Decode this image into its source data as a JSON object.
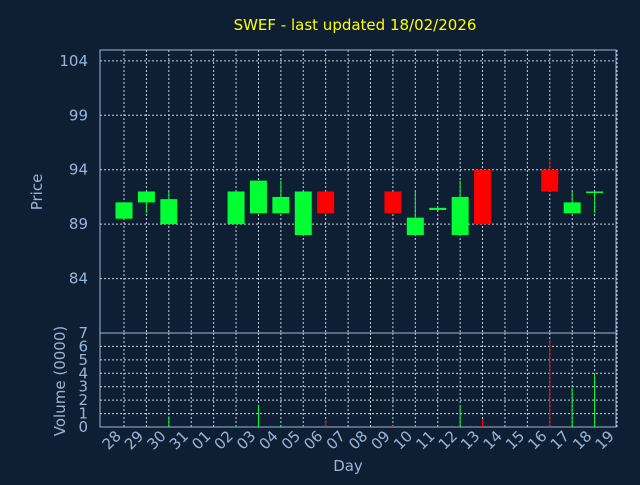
{
  "chart_data": {
    "type": "candlestick",
    "title": "SWEF - last updated 18/02/2026",
    "xlabel": "Day",
    "ylabel_price": "Price",
    "ylabel_volume": "Volume (0000)",
    "x_ticks": [
      "28",
      "29",
      "30",
      "31",
      "01",
      "02",
      "03",
      "04",
      "05",
      "06",
      "07",
      "08",
      "09",
      "10",
      "11",
      "12",
      "13",
      "14",
      "15",
      "16",
      "17",
      "18",
      "19"
    ],
    "price_ticks": [
      "104",
      "99",
      "94",
      "89",
      "84"
    ],
    "price_tick_values": [
      104,
      99,
      94,
      89,
      84
    ],
    "price_ylim": [
      79,
      105
    ],
    "volume_ticks": [
      "0",
      "1",
      "2",
      "3",
      "4",
      "5",
      "6",
      "7"
    ],
    "volume_ylim": [
      0,
      7
    ],
    "up_color": "#00ff33",
    "down_color": "#ff0000",
    "grid": true,
    "candles": [
      {
        "day": "28",
        "open": 89.5,
        "high": 91,
        "low": 89.5,
        "close": 91,
        "volume": 0
      },
      {
        "day": "29",
        "open": 91,
        "high": 92,
        "low": 90,
        "close": 92,
        "volume": 0
      },
      {
        "day": "30",
        "open": 89,
        "high": 92,
        "low": 89,
        "close": 91.3,
        "volume": 0.8
      },
      {
        "day": "02",
        "open": 89,
        "high": 92,
        "low": 89,
        "close": 92,
        "volume": 0.1
      },
      {
        "day": "03",
        "open": 90,
        "high": 93,
        "low": 90,
        "close": 93,
        "volume": 1.6
      },
      {
        "day": "04",
        "open": 90,
        "high": 93,
        "low": 90,
        "close": 91.5,
        "volume": 0.1
      },
      {
        "day": "05",
        "open": 88,
        "high": 92,
        "low": 88,
        "close": 92,
        "volume": 0.1
      },
      {
        "day": "06",
        "open": 92,
        "high": 92,
        "low": 90,
        "close": 90,
        "volume": 0.5
      },
      {
        "day": "09",
        "open": 92,
        "high": 92,
        "low": 90,
        "close": 90,
        "volume": 0.1
      },
      {
        "day": "10",
        "open": 88,
        "high": 92,
        "low": 88,
        "close": 89.6,
        "volume": 0.1
      },
      {
        "day": "11",
        "open": 90.3,
        "high": 90.5,
        "low": 90.3,
        "close": 90.5,
        "volume": 0.05
      },
      {
        "day": "12",
        "open": 88,
        "high": 93,
        "low": 88,
        "close": 91.5,
        "volume": 1.6
      },
      {
        "day": "13",
        "open": 94,
        "high": 94,
        "low": 89,
        "close": 89,
        "volume": 0.6
      },
      {
        "day": "16",
        "open": 94,
        "high": 95,
        "low": 92,
        "close": 92,
        "volume": 6.5
      },
      {
        "day": "17",
        "open": 90,
        "high": 92,
        "low": 90,
        "close": 91,
        "volume": 2.9
      },
      {
        "day": "18",
        "open": 91.9,
        "high": 92,
        "low": 90,
        "close": 92,
        "volume": 4.0
      }
    ]
  }
}
